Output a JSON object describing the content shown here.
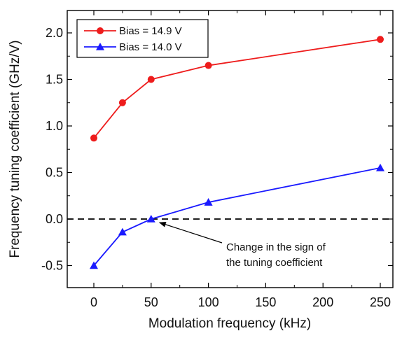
{
  "chart_data": {
    "type": "line",
    "xlabel": "Modulation frequency (kHz)",
    "ylabel": "Frequency tuning coefficient (GHz/V)",
    "xlim": [
      -25,
      270
    ],
    "ylim": [
      -0.75,
      2.25
    ],
    "xticks": [
      0,
      50,
      100,
      150,
      200,
      250
    ],
    "xtick_labels": [
      "0",
      "50",
      "100",
      "150",
      "200",
      "250"
    ],
    "yticks": [
      -0.5,
      0.0,
      0.5,
      1.0,
      1.5,
      2.0
    ],
    "ytick_labels": [
      "-0.5",
      "0.0",
      "0.5",
      "1.0",
      "1.5",
      "2.0"
    ],
    "grid": false,
    "legend_position": "top-left",
    "series": [
      {
        "name": "Bias = 14.9 V",
        "color": "#ee1c1c",
        "marker": "circle",
        "x": [
          0,
          25,
          50,
          100,
          250
        ],
        "y": [
          0.87,
          1.25,
          1.5,
          1.65,
          1.93
        ]
      },
      {
        "name": "Bias = 14.0 V",
        "color": "#1a1aff",
        "marker": "triangle",
        "x": [
          0,
          25,
          50,
          100,
          250
        ],
        "y": [
          -0.5,
          -0.14,
          0.0,
          0.18,
          0.55
        ]
      }
    ],
    "reference_line": {
      "y": 0.0,
      "style": "dashed",
      "color": "#000000"
    },
    "annotation": {
      "lines": [
        "Change in the sign of",
        "the tuning coefficient"
      ],
      "points_to": {
        "x": 50,
        "y": 0.0
      }
    }
  }
}
